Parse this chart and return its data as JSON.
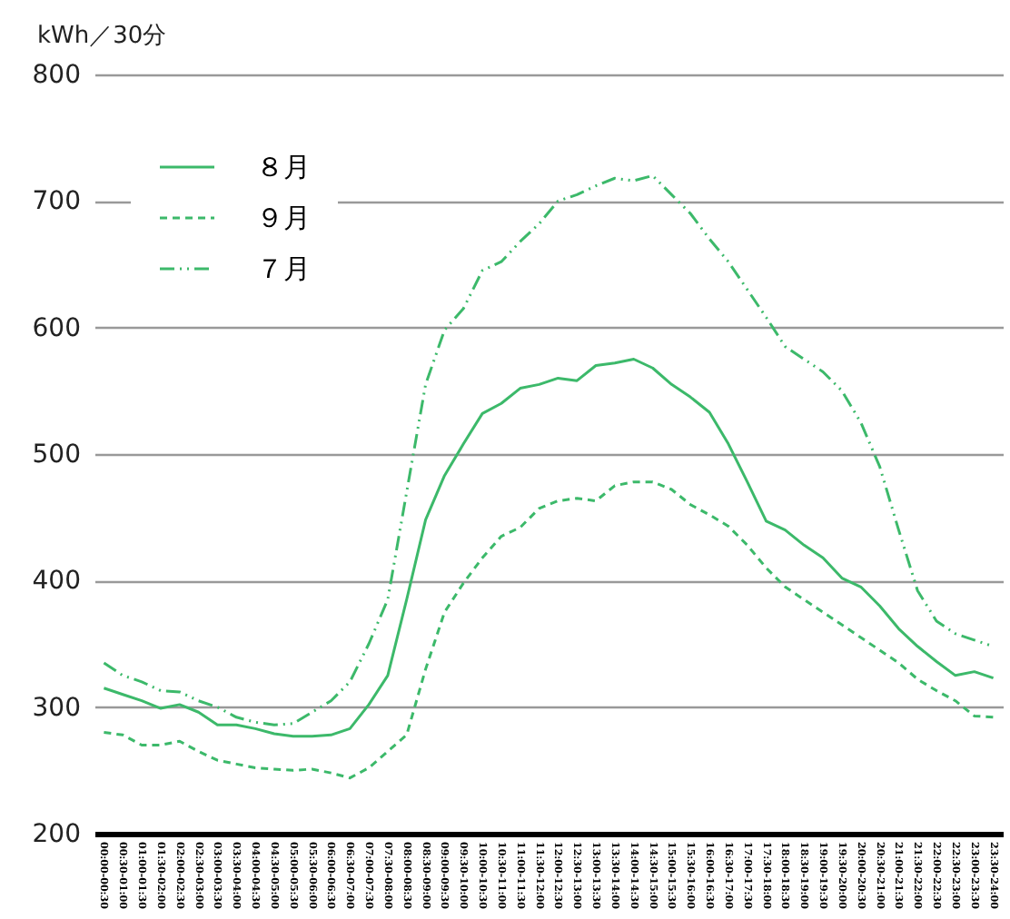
{
  "chart_data": {
    "type": "line",
    "ylabel": "kWh／30分",
    "categories": [
      "00:00-00:30",
      "00:30-01:00",
      "01:00-01:30",
      "01:30-02:00",
      "02:00-02:30",
      "02:30-03:00",
      "03:00-03:30",
      "03:30-04:00",
      "04:00-04:30",
      "04:30-05:00",
      "05:00-05:30",
      "05:30-06:00",
      "06:00-06:30",
      "06:30-07:00",
      "07:00-07:30",
      "07:30-08:00",
      "08:00-08:30",
      "08:30-09:00",
      "09:00-09:30",
      "09:30-10:00",
      "10:00-10:30",
      "10:30-11:00",
      "11:00-11:30",
      "11:30-12:00",
      "12:00-12:30",
      "12:30-13:00",
      "13:00-13:30",
      "13:30-14:00",
      "14:00-14:30",
      "14:30-15:00",
      "15:00-15:30",
      "15:30-16:00",
      "16:00-16:30",
      "16:30-17:00",
      "17:00-17:30",
      "17:30-18:00",
      "18:00-18:30",
      "18:30-19:00",
      "19:00-19:30",
      "19:30-20:00",
      "20:00-20:30",
      "20:30-21:00",
      "21:00-21:30",
      "21:30-22:00",
      "22:00-22:30",
      "22:30-23:00",
      "23:00-23:30",
      "23:30-24:00"
    ],
    "series": [
      {
        "name": "８月",
        "color": "#3cb96a",
        "line_style": "solid",
        "values": [
          315,
          310,
          305,
          299,
          302,
          296,
          286,
          286,
          283,
          279,
          277,
          277,
          278,
          283,
          302,
          325,
          385,
          448,
          483,
          508,
          532,
          540,
          552,
          555,
          560,
          558,
          570,
          572,
          575,
          568,
          555,
          545,
          533,
          508,
          478,
          447,
          440,
          428,
          418,
          402,
          395,
          380,
          362,
          348,
          336,
          325,
          328,
          323
        ]
      },
      {
        "name": "９月",
        "color": "#3cb96a",
        "line_style": "dashed",
        "values": [
          280,
          278,
          270,
          270,
          273,
          265,
          258,
          255,
          252,
          251,
          250,
          251,
          248,
          244,
          252,
          265,
          278,
          330,
          375,
          398,
          418,
          435,
          442,
          457,
          463,
          465,
          463,
          475,
          478,
          478,
          472,
          460,
          452,
          443,
          428,
          410,
          395,
          385,
          375,
          365,
          355,
          345,
          335,
          322,
          313,
          305,
          293,
          292
        ]
      },
      {
        "name": "７月",
        "color": "#3cb96a",
        "line_style": "dashdot",
        "values": [
          335,
          325,
          320,
          313,
          312,
          305,
          300,
          292,
          288,
          286,
          287,
          296,
          305,
          320,
          350,
          385,
          470,
          555,
          598,
          615,
          645,
          652,
          668,
          682,
          700,
          705,
          712,
          718,
          716,
          720,
          705,
          690,
          670,
          652,
          630,
          608,
          585,
          575,
          565,
          550,
          525,
          490,
          440,
          392,
          368,
          358,
          353,
          348
        ]
      }
    ],
    "ylim": [
      200,
      800
    ],
    "yticks": [
      200,
      300,
      400,
      500,
      600,
      700,
      800
    ],
    "grid": "y",
    "legend": "top left"
  }
}
